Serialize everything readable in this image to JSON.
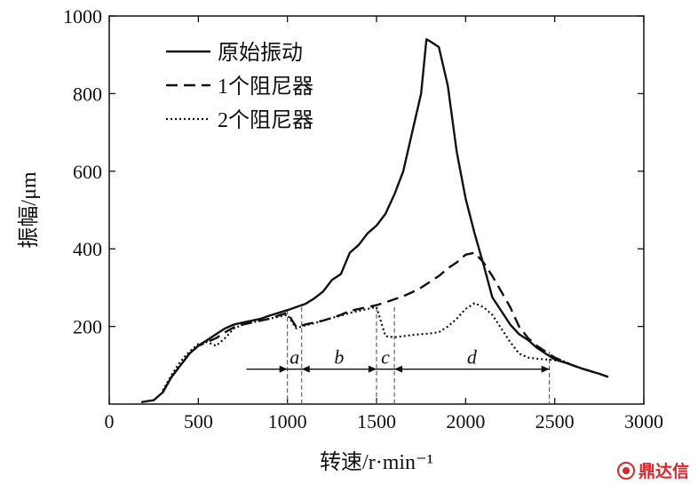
{
  "chart_data": {
    "type": "line",
    "title": "",
    "xlabel": "转速/r·min⁻¹",
    "ylabel": "振幅/μm",
    "xlim": [
      0,
      3000
    ],
    "ylim": [
      0,
      1000
    ],
    "xticks": [
      0,
      500,
      1000,
      1500,
      2000,
      2500,
      3000
    ],
    "yticks": [
      200,
      400,
      600,
      800,
      1000
    ],
    "xtick_labels": [
      "0",
      "500",
      "1000",
      "1500",
      "2000",
      "2500",
      "3000"
    ],
    "ytick_labels": [
      "200",
      "400",
      "600",
      "800",
      "1000"
    ],
    "grid": false,
    "legend_position": "top-left",
    "series": [
      {
        "name": "原始振动",
        "style": "solid",
        "x": [
          180,
          250,
          300,
          350,
          400,
          450,
          500,
          550,
          600,
          650,
          700,
          750,
          800,
          850,
          900,
          950,
          1000,
          1050,
          1100,
          1150,
          1200,
          1250,
          1300,
          1350,
          1400,
          1450,
          1500,
          1550,
          1600,
          1650,
          1700,
          1750,
          1780,
          1800,
          1850,
          1900,
          1950,
          2000,
          2050,
          2100,
          2150,
          2200,
          2250,
          2300,
          2350,
          2400,
          2450,
          2500,
          2550,
          2600,
          2650,
          2700,
          2750,
          2800
        ],
        "y": [
          5,
          10,
          30,
          70,
          100,
          130,
          150,
          165,
          180,
          195,
          205,
          210,
          215,
          220,
          228,
          235,
          242,
          250,
          258,
          272,
          290,
          320,
          335,
          390,
          410,
          440,
          460,
          490,
          540,
          600,
          700,
          800,
          940,
          935,
          920,
          820,
          650,
          530,
          440,
          360,
          275,
          240,
          205,
          180,
          165,
          145,
          130,
          115,
          108,
          100,
          92,
          85,
          78,
          70
        ]
      },
      {
        "name": "1个阻尼器",
        "style": "dashed",
        "x": [
          300,
          350,
          400,
          450,
          500,
          550,
          600,
          650,
          700,
          750,
          800,
          850,
          900,
          950,
          1000,
          1050,
          1100,
          1150,
          1200,
          1250,
          1300,
          1350,
          1400,
          1450,
          1500,
          1550,
          1600,
          1650,
          1700,
          1750,
          1800,
          1850,
          1900,
          1950,
          2000,
          2050,
          2100,
          2150,
          2200,
          2250,
          2300,
          2350,
          2400,
          2450,
          2500,
          2550,
          2600,
          2650,
          2700,
          2750,
          2800
        ],
        "y": [
          30,
          70,
          100,
          130,
          150,
          160,
          170,
          185,
          198,
          205,
          210,
          215,
          220,
          228,
          235,
          198,
          205,
          210,
          215,
          222,
          230,
          240,
          245,
          250,
          255,
          262,
          270,
          278,
          288,
          300,
          315,
          330,
          350,
          365,
          385,
          390,
          365,
          330,
          290,
          250,
          200,
          170,
          150,
          135,
          120,
          110,
          100,
          92,
          85,
          78,
          70
        ]
      },
      {
        "name": "2个阻尼器",
        "style": "dotted",
        "x": [
          300,
          350,
          400,
          450,
          500,
          550,
          600,
          650,
          700,
          750,
          800,
          850,
          900,
          950,
          1000,
          1050,
          1100,
          1150,
          1200,
          1250,
          1300,
          1350,
          1400,
          1450,
          1500,
          1550,
          1600,
          1650,
          1700,
          1750,
          1800,
          1850,
          1900,
          1950,
          2000,
          2050,
          2100,
          2150,
          2200,
          2250,
          2300,
          2350,
          2400,
          2450,
          2500,
          2550,
          2600,
          2650,
          2700,
          2750,
          2800
        ],
        "y": [
          35,
          75,
          110,
          135,
          155,
          160,
          150,
          170,
          195,
          205,
          210,
          215,
          220,
          225,
          230,
          195,
          203,
          208,
          215,
          222,
          228,
          235,
          240,
          245,
          250,
          175,
          172,
          175,
          178,
          180,
          182,
          185,
          200,
          220,
          245,
          260,
          250,
          230,
          195,
          160,
          130,
          120,
          117,
          115,
          113,
          110,
          100,
          92,
          85,
          78,
          70
        ]
      }
    ],
    "regions": [
      {
        "label": "a",
        "from": 1000,
        "to": 1080
      },
      {
        "label": "b",
        "from": 1080,
        "to": 1500
      },
      {
        "label": "c",
        "from": 1500,
        "to": 1600
      },
      {
        "label": "d",
        "from": 1600,
        "to": 2470
      }
    ],
    "regions_arrow_y": 90,
    "region_arrow_start_x": 770
  },
  "watermark": {
    "text": "鼎达信",
    "color": "#d8262e"
  }
}
